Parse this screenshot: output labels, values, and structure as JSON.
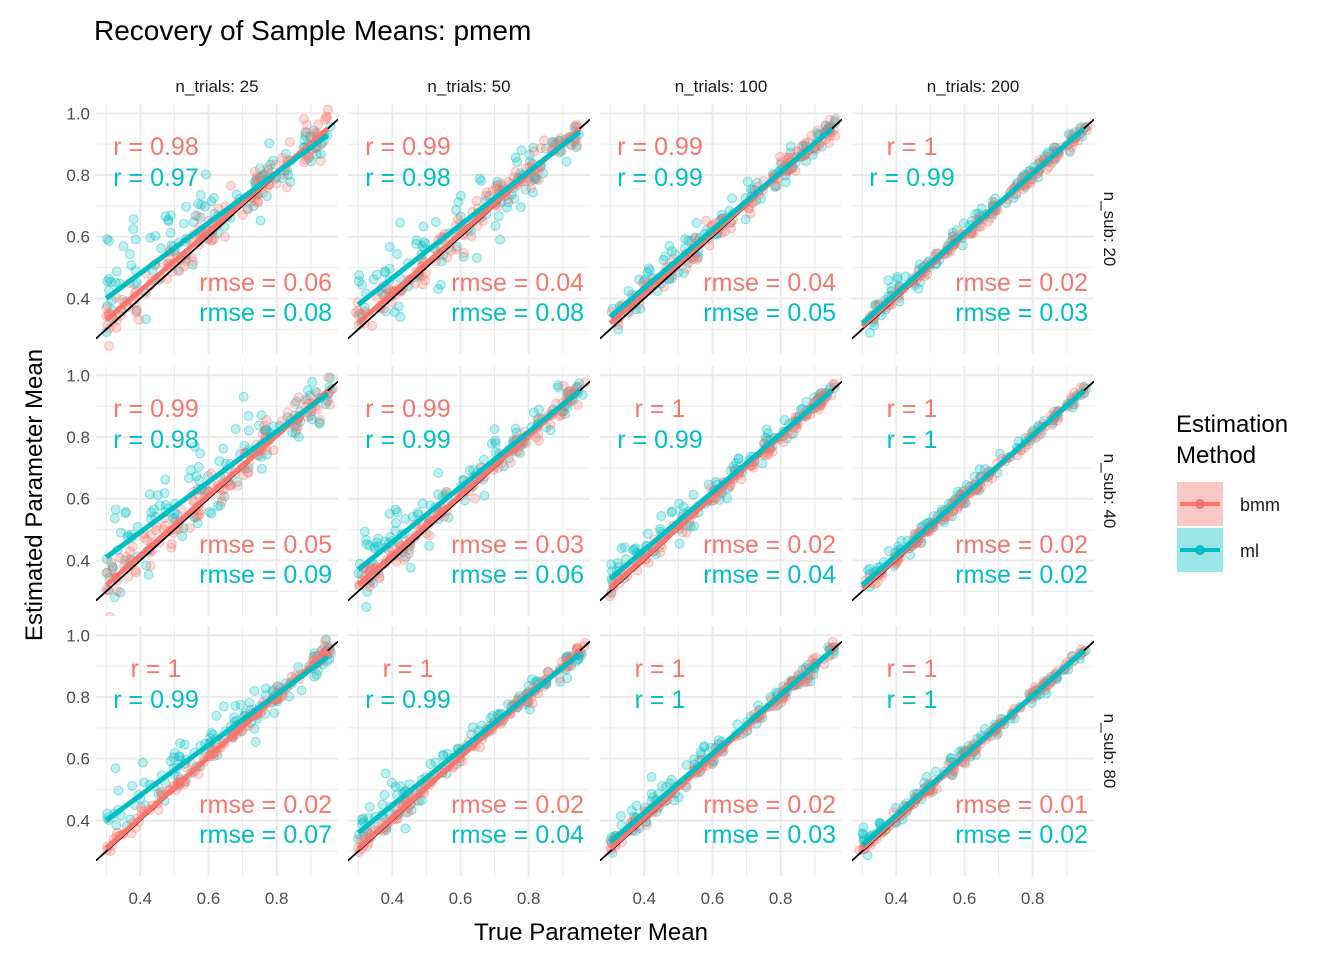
{
  "chart_data": {
    "type": "scatter",
    "title": "Recovery of Sample Means: pmem",
    "xlabel": "True Parameter Mean",
    "ylabel": "Estimated Parameter Mean",
    "xlim": [
      0.27,
      0.98
    ],
    "ylim": [
      0.22,
      1.03
    ],
    "x_ticks": [
      0.4,
      0.6,
      0.8
    ],
    "y_ticks": [
      0.4,
      0.6,
      0.8,
      1.0
    ],
    "x_tick_labels": [
      "0.4",
      "0.6",
      "0.8"
    ],
    "y_tick_labels": [
      "0.4",
      "0.6",
      "0.8",
      "1.0"
    ],
    "grid": true,
    "identity_line": true,
    "legend": {
      "title_line1": "Estimation",
      "title_line2": "Method",
      "position": "right",
      "entries": [
        {
          "label": "bmm",
          "color": "#F8766D"
        },
        {
          "label": "ml",
          "color": "#00BFC4"
        }
      ]
    },
    "colors": {
      "bmm": "#F8766D",
      "ml": "#00BFC4",
      "identity": "#000000",
      "grid": "#EBEBEB"
    },
    "col_facets": [
      "n_trials: 25",
      "n_trials: 50",
      "n_trials: 100",
      "n_trials: 200"
    ],
    "row_facets": [
      "n_sub: 20",
      "n_sub: 40",
      "n_sub: 80"
    ],
    "panels": [
      {
        "row": 0,
        "col": 0,
        "r_bmm": "r = 0.98",
        "r_ml": "r = 0.97",
        "rmse_bmm": "rmse = 0.06",
        "rmse_ml": "rmse = 0.08",
        "fit_bmm": [
          0.3,
          0.33,
          0.95,
          0.95
        ],
        "fit_ml": [
          0.3,
          0.4,
          0.95,
          0.93
        ],
        "spread": [
          0.035,
          0.06
        ]
      },
      {
        "row": 0,
        "col": 1,
        "r_bmm": "r = 0.99",
        "r_ml": "r = 0.98",
        "rmse_bmm": "rmse = 0.04",
        "rmse_ml": "rmse = 0.08",
        "fit_bmm": [
          0.3,
          0.32,
          0.95,
          0.95
        ],
        "fit_ml": [
          0.3,
          0.38,
          0.95,
          0.94
        ],
        "spread": [
          0.025,
          0.05
        ]
      },
      {
        "row": 0,
        "col": 2,
        "r_bmm": "r = 0.99",
        "r_ml": "r = 0.99",
        "rmse_bmm": "rmse = 0.04",
        "rmse_ml": "rmse = 0.05",
        "fit_bmm": [
          0.3,
          0.32,
          0.95,
          0.95
        ],
        "fit_ml": [
          0.3,
          0.34,
          0.95,
          0.95
        ],
        "spread": [
          0.02,
          0.03
        ]
      },
      {
        "row": 0,
        "col": 3,
        "r_bmm": "r = 1",
        "r_ml": "r = 0.99",
        "rmse_bmm": "rmse = 0.02",
        "rmse_ml": "rmse = 0.03",
        "fit_bmm": [
          0.3,
          0.31,
          0.95,
          0.95
        ],
        "fit_ml": [
          0.3,
          0.32,
          0.95,
          0.95
        ],
        "spread": [
          0.012,
          0.02
        ]
      },
      {
        "row": 1,
        "col": 0,
        "r_bmm": "r = 0.99",
        "r_ml": "r = 0.98",
        "rmse_bmm": "rmse = 0.05",
        "rmse_ml": "rmse = 0.09",
        "fit_bmm": [
          0.3,
          0.32,
          0.95,
          0.95
        ],
        "fit_ml": [
          0.3,
          0.41,
          0.95,
          0.94
        ],
        "spread": [
          0.03,
          0.06
        ]
      },
      {
        "row": 1,
        "col": 1,
        "r_bmm": "r = 0.99",
        "r_ml": "r = 0.99",
        "rmse_bmm": "rmse = 0.03",
        "rmse_ml": "rmse = 0.06",
        "fit_bmm": [
          0.3,
          0.32,
          0.95,
          0.95
        ],
        "fit_ml": [
          0.3,
          0.37,
          0.95,
          0.95
        ],
        "spread": [
          0.02,
          0.04
        ]
      },
      {
        "row": 1,
        "col": 2,
        "r_bmm": "r = 1",
        "r_ml": "r = 0.99",
        "rmse_bmm": "rmse = 0.02",
        "rmse_ml": "rmse = 0.04",
        "fit_bmm": [
          0.3,
          0.31,
          0.95,
          0.95
        ],
        "fit_ml": [
          0.3,
          0.34,
          0.95,
          0.95
        ],
        "spread": [
          0.012,
          0.025
        ]
      },
      {
        "row": 1,
        "col": 3,
        "r_bmm": "r = 1",
        "r_ml": "r = 1",
        "rmse_bmm": "rmse = 0.02",
        "rmse_ml": "rmse = 0.02",
        "fit_bmm": [
          0.3,
          0.31,
          0.95,
          0.95
        ],
        "fit_ml": [
          0.3,
          0.32,
          0.95,
          0.95
        ],
        "spread": [
          0.01,
          0.015
        ]
      },
      {
        "row": 2,
        "col": 0,
        "r_bmm": "r = 1",
        "r_ml": "r = 0.99",
        "rmse_bmm": "rmse = 0.02",
        "rmse_ml": "rmse = 0.07",
        "fit_bmm": [
          0.3,
          0.31,
          0.95,
          0.95
        ],
        "fit_ml": [
          0.3,
          0.4,
          0.95,
          0.93
        ],
        "spread": [
          0.012,
          0.04
        ]
      },
      {
        "row": 2,
        "col": 1,
        "r_bmm": "r = 1",
        "r_ml": "r = 0.99",
        "rmse_bmm": "rmse = 0.02",
        "rmse_ml": "rmse = 0.04",
        "fit_bmm": [
          0.3,
          0.31,
          0.95,
          0.95
        ],
        "fit_ml": [
          0.3,
          0.36,
          0.95,
          0.94
        ],
        "spread": [
          0.012,
          0.03
        ]
      },
      {
        "row": 2,
        "col": 2,
        "r_bmm": "r = 1",
        "r_ml": "r = 1",
        "rmse_bmm": "rmse = 0.02",
        "rmse_ml": "rmse = 0.03",
        "fit_bmm": [
          0.3,
          0.31,
          0.95,
          0.95
        ],
        "fit_ml": [
          0.3,
          0.33,
          0.95,
          0.95
        ],
        "spread": [
          0.01,
          0.02
        ]
      },
      {
        "row": 2,
        "col": 3,
        "r_bmm": "r = 1",
        "r_ml": "r = 1",
        "rmse_bmm": "rmse = 0.01",
        "rmse_ml": "rmse = 0.02",
        "fit_bmm": [
          0.3,
          0.31,
          0.95,
          0.95
        ],
        "fit_ml": [
          0.3,
          0.32,
          0.95,
          0.95
        ],
        "spread": [
          0.008,
          0.015
        ]
      }
    ]
  }
}
